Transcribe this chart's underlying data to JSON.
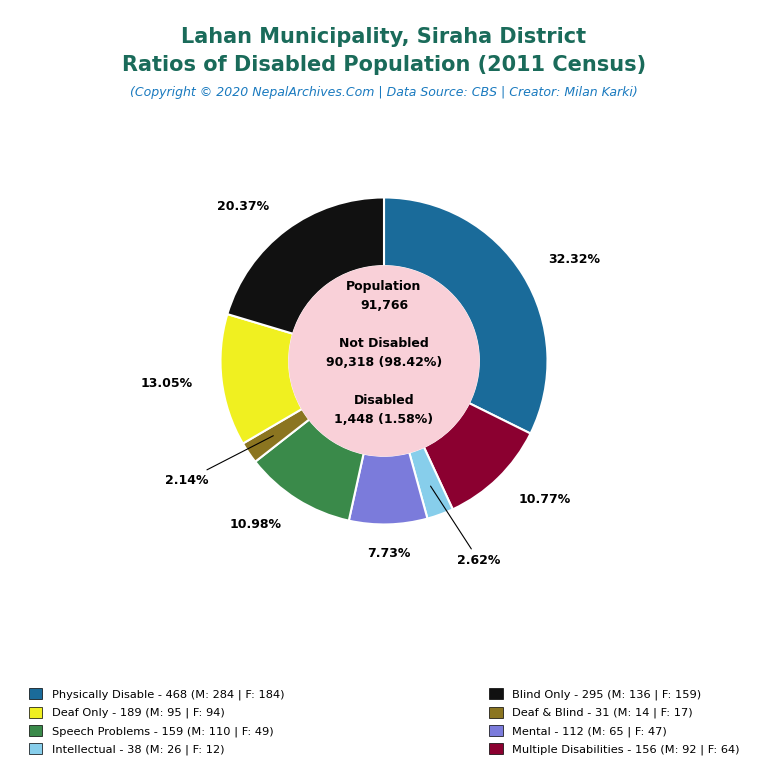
{
  "title_line1": "Lahan Municipality, Siraha District",
  "title_line2": "Ratios of Disabled Population (2011 Census)",
  "subtitle": "(Copyright © 2020 NepalArchives.Com | Data Source: CBS | Creator: Milan Karki)",
  "title_color": "#1a6b5a",
  "subtitle_color": "#1a7abf",
  "center_bg": "#f9d0d8",
  "total_population": 91766,
  "not_disabled": 90318,
  "not_disabled_pct": "98.42%",
  "disabled": 1448,
  "disabled_pct": "1.58%",
  "slices": [
    {
      "label": "Physically Disable - 468 (M: 284 | F: 184)",
      "short": "Physically Disable",
      "value": 468,
      "pct": "32.32%",
      "color": "#1a6b9a"
    },
    {
      "label": "Multiple Disabilities - 156 (M: 92 | F: 64)",
      "short": "Multiple Disabilities",
      "value": 156,
      "pct": "10.77%",
      "color": "#8b0030"
    },
    {
      "label": "Intellectual - 38 (M: 26 | F: 12)",
      "short": "Intellectual",
      "value": 38,
      "pct": "2.62%",
      "color": "#87ceeb"
    },
    {
      "label": "Mental - 112 (M: 65 | F: 47)",
      "short": "Mental",
      "value": 112,
      "pct": "7.73%",
      "color": "#7b7bdb"
    },
    {
      "label": "Speech Problems - 159 (M: 110 | F: 49)",
      "short": "Speech Problems",
      "value": 159,
      "pct": "10.98%",
      "color": "#3a8a4a"
    },
    {
      "label": "Deaf & Blind - 31 (M: 14 | F: 17)",
      "short": "Deaf & Blind",
      "value": 31,
      "pct": "2.14%",
      "color": "#8b7520"
    },
    {
      "label": "Deaf Only - 189 (M: 95 | F: 94)",
      "short": "Deaf Only",
      "value": 189,
      "pct": "13.05%",
      "color": "#f0f020"
    },
    {
      "label": "Blind Only - 295 (M: 136 | F: 159)",
      "short": "Blind Only",
      "value": 295,
      "pct": "20.37%",
      "color": "#111111"
    }
  ],
  "legend_items_left": [
    {
      "label": "Physically Disable - 468 (M: 284 | F: 184)",
      "color": "#1a6b9a"
    },
    {
      "label": "Deaf Only - 189 (M: 95 | F: 94)",
      "color": "#f0f020"
    },
    {
      "label": "Speech Problems - 159 (M: 110 | F: 49)",
      "color": "#3a8a4a"
    },
    {
      "label": "Intellectual - 38 (M: 26 | F: 12)",
      "color": "#87ceeb"
    }
  ],
  "legend_items_right": [
    {
      "label": "Blind Only - 295 (M: 136 | F: 159)",
      "color": "#111111"
    },
    {
      "label": "Deaf & Blind - 31 (M: 14 | F: 17)",
      "color": "#8b7520"
    },
    {
      "label": "Mental - 112 (M: 65 | F: 47)",
      "color": "#7b7bdb"
    },
    {
      "label": "Multiple Disabilities - 156 (M: 92 | F: 64)",
      "color": "#8b0030"
    }
  ]
}
